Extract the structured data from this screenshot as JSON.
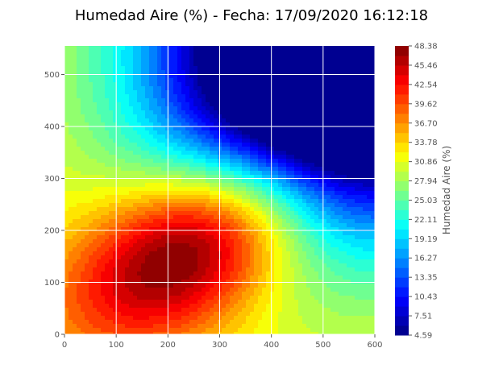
{
  "chart_data": {
    "type": "contour",
    "title": "Humedad Aire (%) - Fecha: 17/09/2020 16:12:18",
    "xlabel": "",
    "ylabel": "",
    "xlim": [
      0,
      600
    ],
    "ylim": [
      0,
      555
    ],
    "x_ticks": [
      0,
      100,
      200,
      300,
      400,
      500,
      600
    ],
    "y_ticks": [
      0,
      100,
      200,
      300,
      400,
      500
    ],
    "grid": true,
    "colormap": "jet",
    "colorbar": {
      "label": "Humedad Aire (%)",
      "min": 4.59,
      "max": 48.38,
      "ticks": [
        "48.38",
        "45.46",
        "42.54",
        "39.62",
        "36.70",
        "33.78",
        "30.86",
        "27.94",
        "25.03",
        "22.11",
        "19.19",
        "16.27",
        "13.35",
        "10.43",
        "7.51",
        "4.59"
      ],
      "levels": 30
    },
    "field_features": {
      "maximum": {
        "x": 250,
        "y": 170,
        "value": 48.38
      },
      "minimum": {
        "x": 530,
        "y": 530,
        "value": 4.59
      }
    }
  }
}
